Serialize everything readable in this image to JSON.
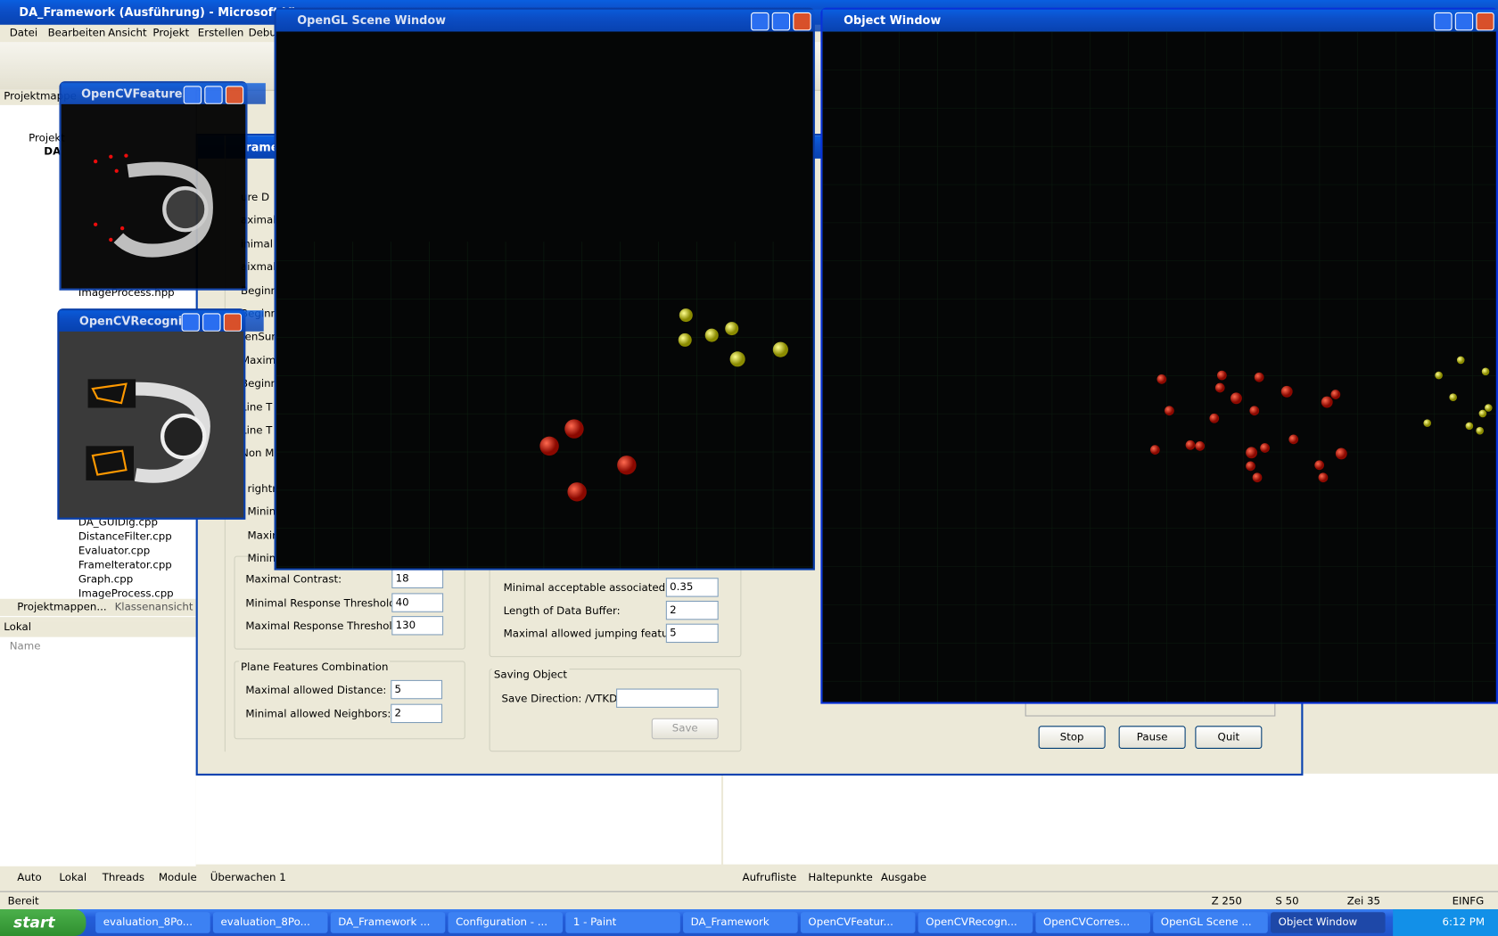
{
  "vs": {
    "title": "DA_Framework (Ausführung) - Microsoft Visua",
    "menu": [
      "Datei",
      "Bearbeiten",
      "Ansicht",
      "Projekt",
      "Erstellen",
      "Debu"
    ],
    "status": [
      "Bereit",
      "Z 250",
      "S 50",
      "Zei 35",
      "EINFG"
    ]
  },
  "solution_explorer": {
    "title": "Projektmappe",
    "root": "Projekt",
    "project": "DA",
    "files_top": [
      "ImageProcess.hpp"
    ],
    "files": [
      "DA_GUIDlg.cpp",
      "DistanceFilter.cpp",
      "Evaluator.cpp",
      "FrameIterator.cpp",
      "Graph.cpp",
      "ImageProcess.cpp"
    ],
    "tabs": [
      "Projektmappen...",
      "Klassenansicht"
    ]
  },
  "locals": {
    "title": "Lokal",
    "column": "Name"
  },
  "debug_tabs_left": [
    "Auto",
    "Lokal",
    "Threads",
    "Module",
    "Überwachen 1"
  ],
  "debug_tabs_right": [
    "Aufrufliste",
    "Haltepunkte",
    "Ausgabe"
  ],
  "config": {
    "title_fragment": "rame",
    "cut_labels": [
      "ure D",
      "aximal",
      "inimal",
      "aixmal",
      "Beginnin",
      "Beginnin",
      "tenSurf",
      "Maxim",
      "Beginn",
      "Line T",
      "Line T",
      "Non M",
      "rightne",
      "Minima",
      "Maxim",
      "Minima"
    ],
    "left_fields": [
      {
        "label": "Maximal Contrast:",
        "value": 18
      },
      {
        "label": "Minimal Response Threshold:",
        "value": 40
      },
      {
        "label": "Maximal Response Threshold:",
        "value": 130
      }
    ],
    "plane_group": {
      "title": "Plane Features Combination",
      "fields": [
        {
          "label": "Maximal allowed Distance:",
          "value": 5
        },
        {
          "label": "Minimal allowed Neighbors:",
          "value": 2
        }
      ]
    },
    "right_fields": [
      {
        "label": "Minimal acceptable associated Rate:",
        "value": 0.35
      },
      {
        "label": "Length of Data Buffer:",
        "value": 2
      },
      {
        "label": "Maximal allowed jumping features:",
        "value": 5
      }
    ],
    "saving_group": {
      "title": "Saving Object",
      "label": "Save Direction: /VTKData/",
      "button": "Save"
    },
    "buttons": [
      "Stop",
      "Pause",
      "Quit"
    ]
  },
  "windows": {
    "opengl": "OpenGL Scene Window",
    "object": "Object Window",
    "feature": "OpenCVFeature...",
    "recognition": "OpenCVRecogni..."
  },
  "taskbar": {
    "start": "start",
    "items": [
      "evaluation_8Po...",
      "evaluation_8Po...",
      "DA_Framework ...",
      "Configuration - ...",
      "1 - Paint",
      "DA_Framework",
      "OpenCVFeatur...",
      "OpenCVRecogn...",
      "OpenCVCorres...",
      "OpenGL Scene ...",
      "Object Window"
    ],
    "clock": "6:12 PM"
  }
}
